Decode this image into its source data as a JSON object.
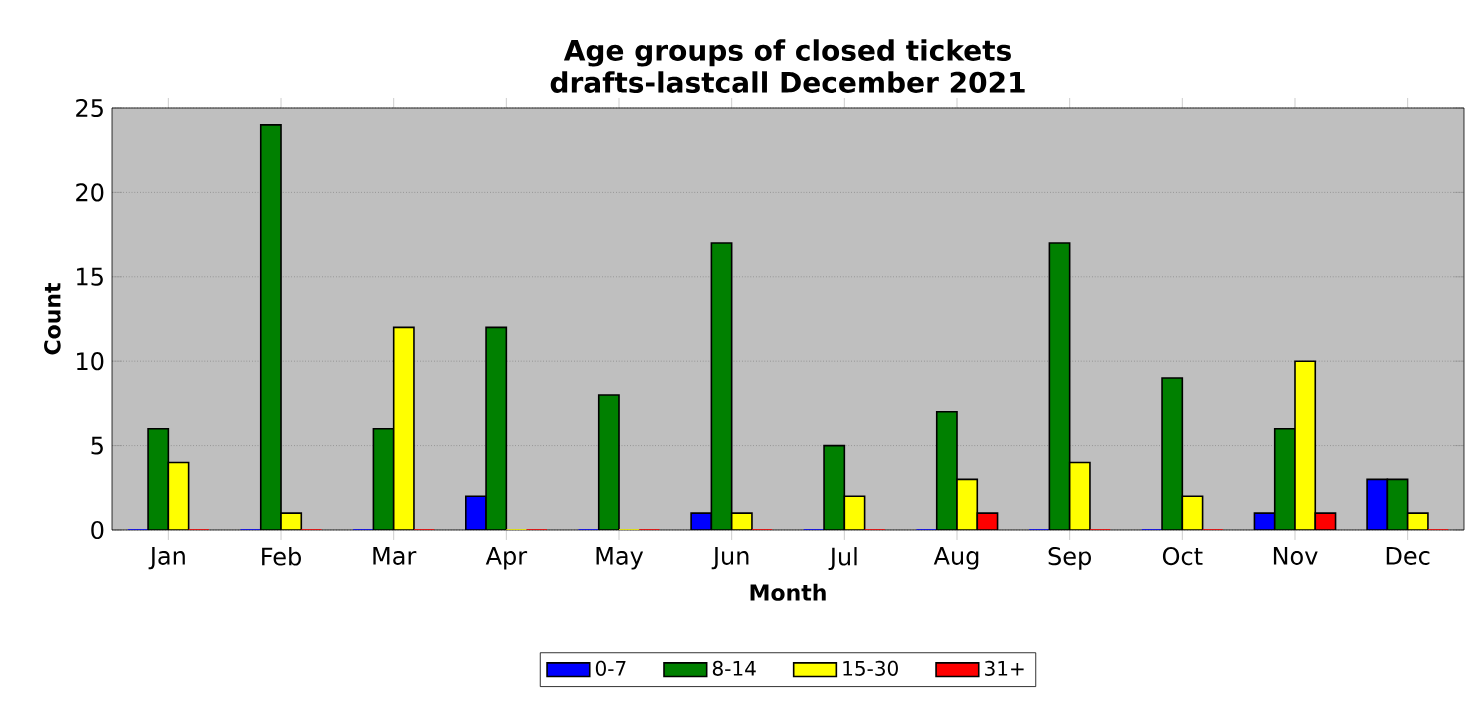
{
  "chart_data": {
    "type": "bar",
    "title": "Age groups of closed tickets",
    "subtitle": "drafts-lastcall December 2021",
    "xlabel": "Month",
    "ylabel": "Count",
    "categories": [
      "Jan",
      "Feb",
      "Mar",
      "Apr",
      "May",
      "Jun",
      "Jul",
      "Aug",
      "Sep",
      "Oct",
      "Nov",
      "Dec"
    ],
    "series": [
      {
        "name": "0-7",
        "color": "#0000ff",
        "values": [
          0,
          0,
          0,
          2,
          0,
          1,
          0,
          0,
          0,
          0,
          1,
          3
        ]
      },
      {
        "name": "8-14",
        "color": "#008000",
        "values": [
          6,
          24,
          6,
          12,
          8,
          17,
          5,
          7,
          17,
          9,
          6,
          3
        ]
      },
      {
        "name": "15-30",
        "color": "#ffff00",
        "values": [
          4,
          1,
          12,
          0,
          0,
          1,
          2,
          3,
          4,
          2,
          10,
          1
        ]
      },
      {
        "name": "31+",
        "color": "#ff0000",
        "values": [
          0,
          0,
          0,
          0,
          0,
          0,
          0,
          1,
          0,
          0,
          1,
          0
        ]
      }
    ],
    "ylim": [
      0,
      25
    ],
    "yticks": [
      0,
      5,
      10,
      15,
      20,
      25
    ],
    "grid": "y",
    "legend": "bottom"
  }
}
